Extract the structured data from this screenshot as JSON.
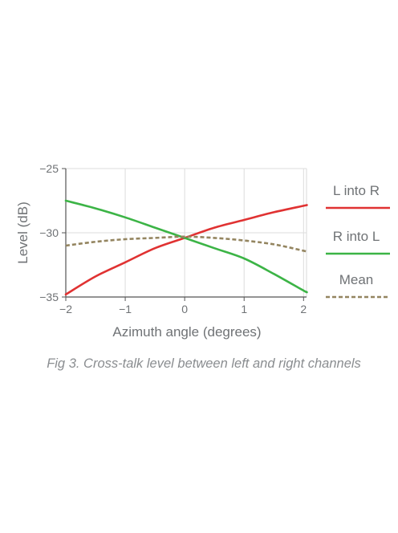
{
  "chart_data": {
    "type": "line",
    "xlabel": "Azimuth angle (degrees)",
    "ylabel": "Level (dB)",
    "xlim": [
      -2,
      2.05
    ],
    "ylim": [
      -35,
      -25
    ],
    "xticks": [
      -2,
      -1,
      0,
      1,
      2
    ],
    "xtick_labels": [
      "−2",
      "−1",
      "0",
      "1",
      "2"
    ],
    "yticks": [
      -25,
      -30,
      -35
    ],
    "ytick_labels": [
      "−25",
      "−30",
      "−35"
    ],
    "grid": true,
    "legend_position": "right",
    "x": [
      -2,
      -1.5,
      -1,
      -0.5,
      0,
      0.5,
      1,
      1.5,
      2,
      2.05
    ],
    "series": [
      {
        "name": "L into R",
        "color": "#e03232",
        "style": "solid",
        "values": [
          -34.8,
          -33.4,
          -32.3,
          -31.2,
          -30.4,
          -29.6,
          -29.0,
          -28.4,
          -27.9,
          -27.85
        ]
      },
      {
        "name": "R into L",
        "color": "#3cb446",
        "style": "solid",
        "values": [
          -27.5,
          -28.1,
          -28.8,
          -29.6,
          -30.4,
          -31.2,
          -32.0,
          -33.2,
          -34.5,
          -34.6
        ]
      },
      {
        "name": "Mean",
        "color": "#948560",
        "style": "dashed",
        "values": [
          -31.0,
          -30.7,
          -30.5,
          -30.4,
          -30.3,
          -30.4,
          -30.6,
          -30.9,
          -31.4,
          -31.5
        ]
      }
    ]
  },
  "caption": "Fig 3. Cross-talk level between left and right channels"
}
